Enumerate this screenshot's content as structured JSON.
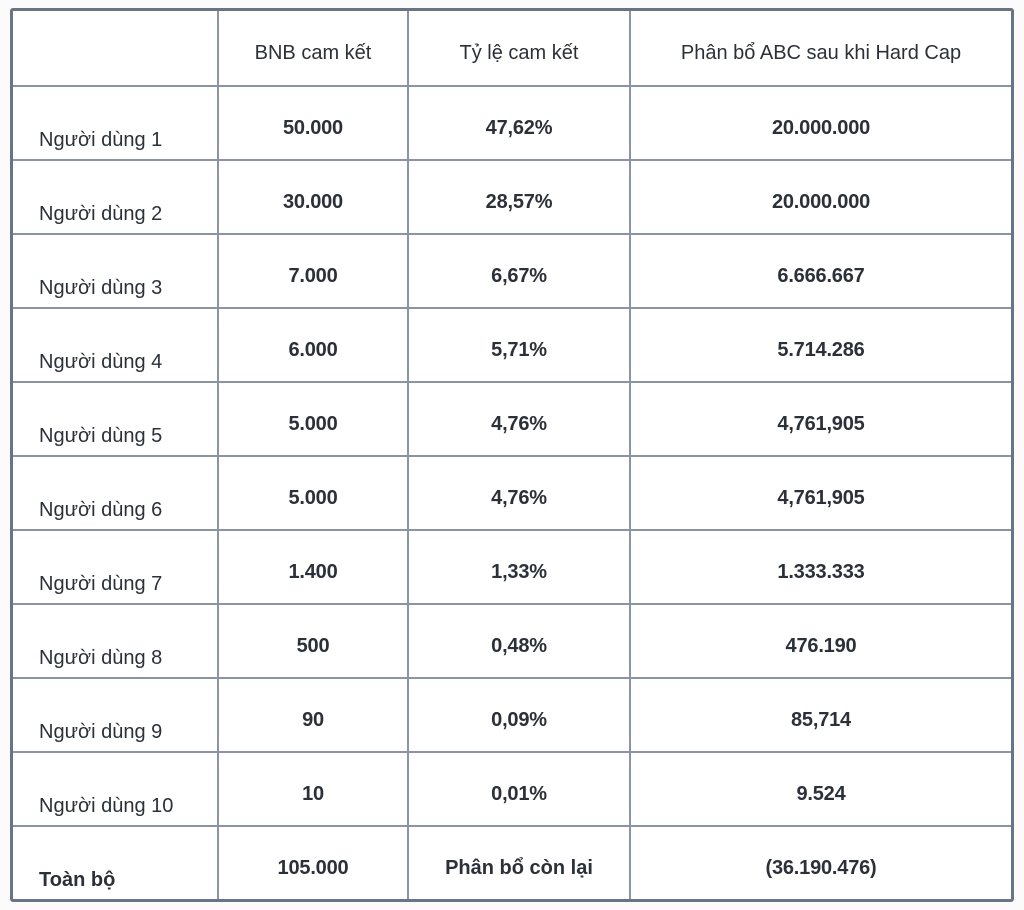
{
  "chart_data": {
    "type": "table",
    "columns": [
      "",
      "BNB cam kết",
      "Tỷ lệ cam kết",
      "Phân bổ ABC sau khi Hard Cap"
    ],
    "rows": [
      [
        "Người dùng 1",
        "50.000",
        "47,62%",
        "20.000.000"
      ],
      [
        "Người dùng 2",
        "30.000",
        "28,57%",
        "20.000.000"
      ],
      [
        "Người dùng 3",
        "7.000",
        "6,67%",
        "6.666.667"
      ],
      [
        "Người dùng 4",
        "6.000",
        "5,71%",
        "5.714.286"
      ],
      [
        "Người dùng 5",
        "5.000",
        "4,76%",
        "4,761,905"
      ],
      [
        "Người dùng 6",
        "5.000",
        "4,76%",
        "4,761,905"
      ],
      [
        "Người dùng 7",
        "1.400",
        "1,33%",
        "1.333.333"
      ],
      [
        "Người dùng 8",
        "500",
        "0,48%",
        "476.190"
      ],
      [
        "Người dùng 9",
        "90",
        "0,09%",
        "85,714"
      ],
      [
        "Người dùng 10",
        "10",
        "0,01%",
        "9.524"
      ]
    ],
    "total_row": [
      "Toàn bộ",
      "105.000",
      "Phân bổ còn lại",
      "(36.190.476)"
    ],
    "layout_hints": {
      "grid": "on",
      "header_position": "top",
      "first_column_role": "row labels"
    },
    "colors": {
      "outer_border": "#6a7487",
      "inner_border": "#8c94a4",
      "cell_background": "#ffffff",
      "text": "#2b3039",
      "page_background": "#fbfbfc"
    }
  }
}
